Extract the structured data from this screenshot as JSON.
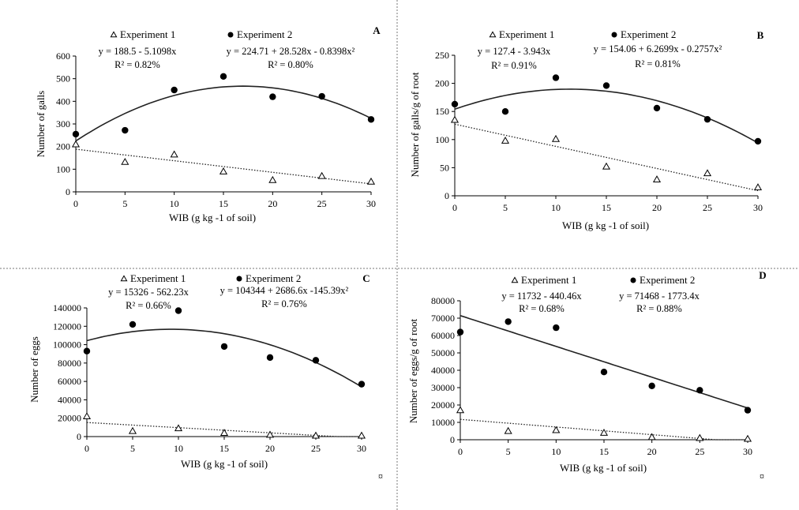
{
  "figure": {
    "corner_mark": "¤"
  },
  "chart_data": [
    {
      "panel": "A",
      "type": "scatter",
      "xlabel": "WIB (g kg -1 of soil)",
      "ylabel": "Number of galls",
      "xlim": [
        0,
        30
      ],
      "ylim": [
        0,
        600
      ],
      "xticks": [
        0,
        5,
        10,
        15,
        20,
        25,
        30
      ],
      "yticks": [
        0,
        100,
        200,
        300,
        400,
        500,
        600
      ],
      "series": [
        {
          "name": "Experiment 1",
          "marker": "triangle-open",
          "x": [
            0,
            5,
            10,
            15,
            20,
            25,
            30
          ],
          "y": [
            210,
            132,
            165,
            90,
            52,
            70,
            45
          ],
          "trend": {
            "kind": "linear",
            "style": "dotted",
            "coef": [
              188.5,
              -5.1098
            ]
          },
          "equation": "y = 188.5 - 5.1098x",
          "r2": "R² = 0.82%"
        },
        {
          "name": "Experiment 2",
          "marker": "circle-filled",
          "x": [
            0,
            5,
            10,
            15,
            20,
            25,
            30
          ],
          "y": [
            255,
            272,
            450,
            510,
            420,
            422,
            320
          ],
          "trend": {
            "kind": "quadratic",
            "style": "solid",
            "coef": [
              224.71,
              28.528,
              -0.8398
            ]
          },
          "equation": "y =  224.71 + 28.528x - 0.8398x²",
          "r2": "R² = 0.80%"
        }
      ]
    },
    {
      "panel": "B",
      "type": "scatter",
      "xlabel": "WIB (g kg -1 of soil)",
      "ylabel": "Number of galls/g of root",
      "xlim": [
        0,
        30
      ],
      "ylim": [
        0,
        250
      ],
      "xticks": [
        0,
        5,
        10,
        15,
        20,
        25,
        30
      ],
      "yticks": [
        0,
        50,
        100,
        150,
        200,
        250
      ],
      "series": [
        {
          "name": "Experiment 1",
          "marker": "triangle-open",
          "x": [
            0,
            5,
            10,
            15,
            20,
            25,
            30
          ],
          "y": [
            135,
            98,
            101,
            52,
            29,
            40,
            15
          ],
          "trend": {
            "kind": "linear",
            "style": "dotted",
            "coef": [
              127.4,
              -3.943
            ]
          },
          "equation": "y = 127.4 - 3.943x",
          "r2": "R² = 0.91%"
        },
        {
          "name": "Experiment 2",
          "marker": "circle-filled",
          "x": [
            0,
            5,
            10,
            15,
            20,
            25,
            30
          ],
          "y": [
            163,
            150,
            210,
            196,
            156,
            136,
            97
          ],
          "trend": {
            "kind": "quadratic",
            "style": "solid",
            "coef": [
              154.06,
              6.2699,
              -0.2757
            ]
          },
          "equation": "y = 154.06 + 6.2699x - 0.2757x²",
          "r2": "R² = 0.81%"
        }
      ]
    },
    {
      "panel": "C",
      "type": "scatter",
      "xlabel": "WIB (g kg -1 of soil)",
      "ylabel": "Number of eggs",
      "xlim": [
        0,
        30
      ],
      "ylim": [
        0,
        140000
      ],
      "xticks": [
        0,
        5,
        10,
        15,
        20,
        25,
        30
      ],
      "yticks": [
        0,
        20000,
        40000,
        60000,
        80000,
        100000,
        120000,
        140000
      ],
      "series": [
        {
          "name": "Experiment 1",
          "marker": "triangle-open",
          "x": [
            0,
            5,
            10,
            15,
            20,
            25,
            30
          ],
          "y": [
            22000,
            6000,
            9000,
            4000,
            2000,
            1000,
            1000
          ],
          "trend": {
            "kind": "linear",
            "style": "dotted",
            "coef": [
              15326,
              -562.23
            ]
          },
          "equation": "y = 15326 - 562.23x",
          "r2": "R² = 0.66%"
        },
        {
          "name": "Experiment 2",
          "marker": "circle-filled",
          "x": [
            0,
            5,
            10,
            15,
            20,
            25,
            30
          ],
          "y": [
            93000,
            122000,
            137000,
            98000,
            86000,
            83000,
            57000
          ],
          "trend": {
            "kind": "quadratic",
            "style": "solid",
            "coef": [
              104344,
              2686.6,
              -145.39
            ]
          },
          "equation": "y = 104344 + 2686.6x -145.39x²",
          "r2": "R² = 0.76%"
        }
      ]
    },
    {
      "panel": "D",
      "type": "scatter",
      "xlabel": "WIB (g kg -1 of soil)",
      "ylabel": "Number of eggs/g of root",
      "xlim": [
        0,
        30
      ],
      "ylim": [
        0,
        80000
      ],
      "xticks": [
        0,
        5,
        10,
        15,
        20,
        25,
        30
      ],
      "yticks": [
        0,
        10000,
        20000,
        30000,
        40000,
        50000,
        60000,
        70000,
        80000
      ],
      "series": [
        {
          "name": "Experiment 1",
          "marker": "triangle-open",
          "x": [
            0,
            5,
            10,
            15,
            20,
            25,
            30
          ],
          "y": [
            17000,
            5000,
            5500,
            4000,
            1500,
            1000,
            500
          ],
          "trend": {
            "kind": "linear",
            "style": "dotted",
            "coef": [
              11732,
              -440.46
            ]
          },
          "equation": "y = 11732 - 440.46x",
          "r2": "R² = 0.68%"
        },
        {
          "name": "Experiment 2",
          "marker": "circle-filled",
          "x": [
            0,
            5,
            10,
            15,
            20,
            25,
            30
          ],
          "y": [
            62000,
            68000,
            64500,
            39000,
            31000,
            28500,
            17000
          ],
          "trend": {
            "kind": "linear",
            "style": "solid",
            "coef": [
              71468,
              -1773.4
            ]
          },
          "equation": "y = 71468 - 1773.4x",
          "r2": "R² = 0.88%"
        }
      ]
    }
  ]
}
